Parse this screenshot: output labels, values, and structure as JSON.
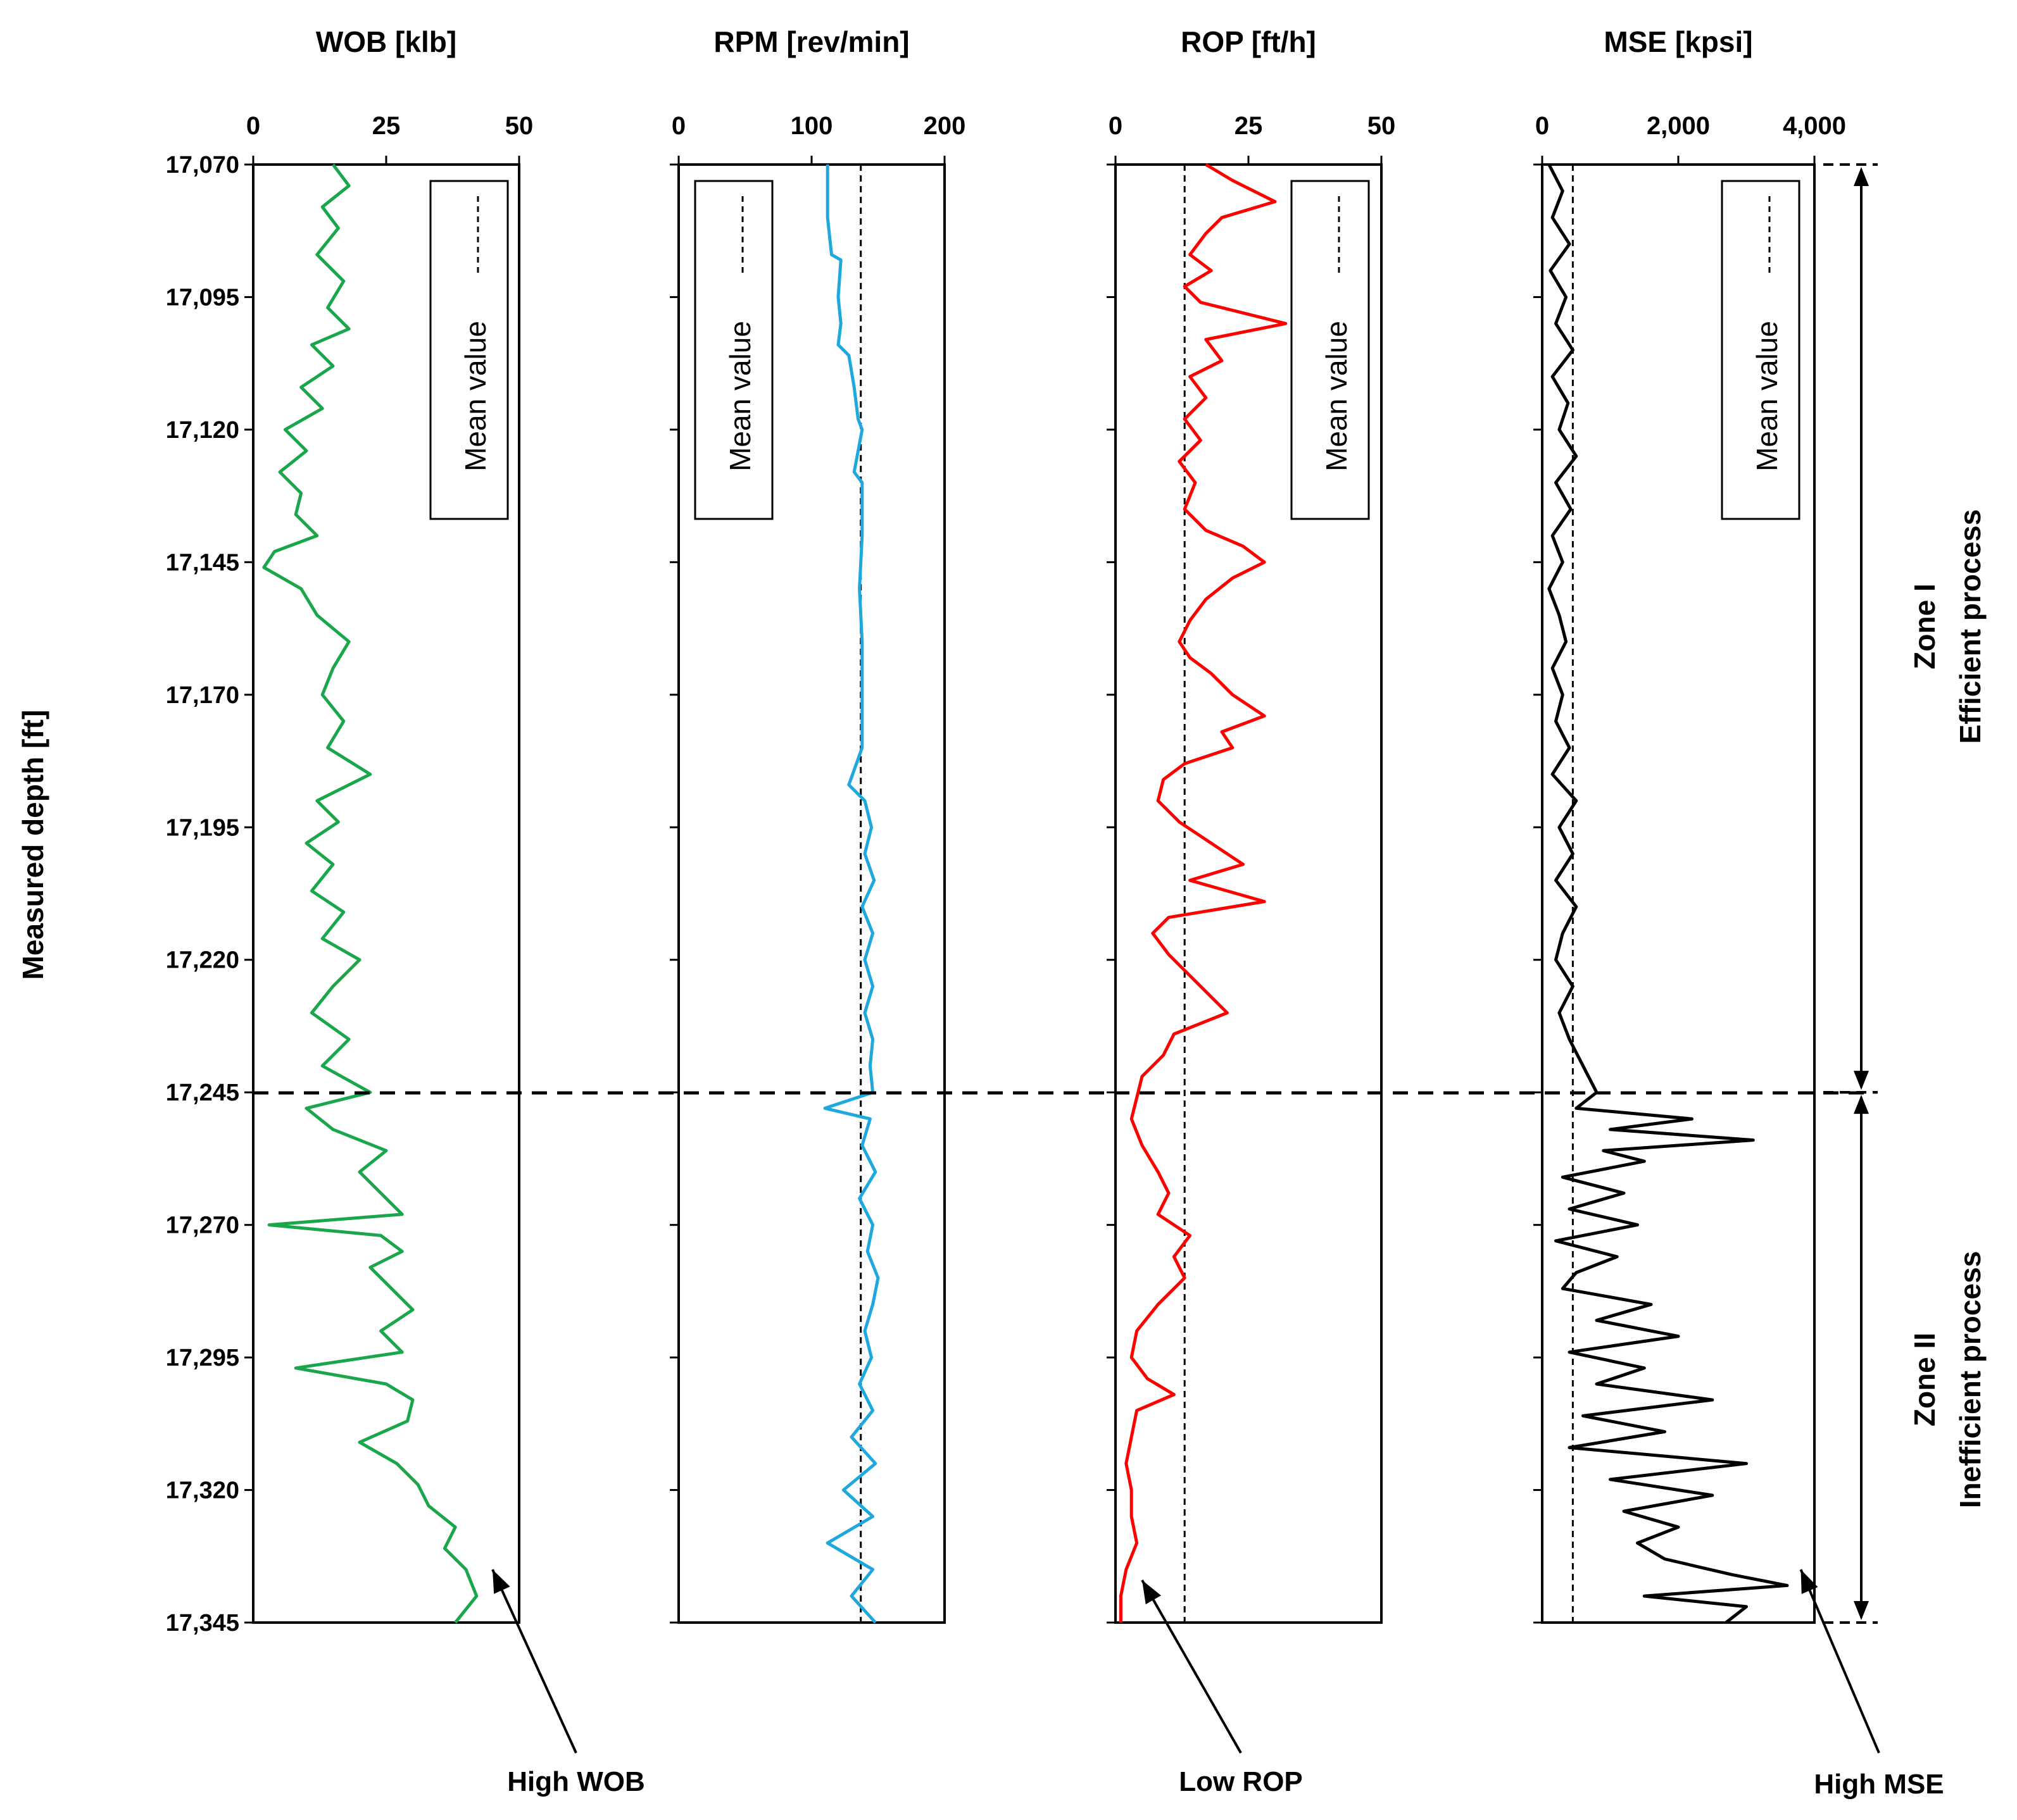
{
  "figure": {
    "y_axis_label": "Measured depth [ft]",
    "legend_label": "Mean value",
    "zones": [
      {
        "name": "Zone I",
        "description": "Efficient process",
        "depth_from": 17070,
        "depth_to": 17245
      },
      {
        "name": "Zone II",
        "description": "Inefficient process",
        "depth_from": 17245,
        "depth_to": 17345
      }
    ],
    "annotations": [
      "High WOB",
      "Low ROP",
      "High MSE"
    ]
  },
  "chart_data": [
    {
      "type": "line",
      "title": "WOB [klb]",
      "xlim": [
        0,
        50
      ],
      "xticks": [
        0,
        25,
        50
      ],
      "xtick_labels": [
        "0",
        "25",
        "50"
      ],
      "ylim": [
        17070,
        17345
      ],
      "yticks": [
        17070,
        17095,
        17120,
        17145,
        17170,
        17195,
        17220,
        17245,
        17270,
        17295,
        17320,
        17345
      ],
      "ytick_labels": [
        "17,070",
        "17,095",
        "17,120",
        "17,145",
        "17,170",
        "17,195",
        "17,220",
        "17,245",
        "17,270",
        "17,295",
        "17,320",
        "17,345"
      ],
      "color": "#1aa64a",
      "mean": null,
      "legend": "top-right",
      "annotation": {
        "text": "High WOB",
        "x": 45,
        "depth": 17335
      },
      "series": [
        {
          "name": "WOB",
          "depth": [
            17070,
            17074,
            17078,
            17082,
            17087,
            17092,
            17097,
            17101,
            17104,
            17108,
            17112,
            17116,
            17120,
            17124,
            17128,
            17132,
            17136,
            17140,
            17143,
            17146,
            17150,
            17155,
            17160,
            17165,
            17170,
            17175,
            17180,
            17185,
            17190,
            17194,
            17198,
            17202,
            17207,
            17211,
            17216,
            17220,
            17225,
            17230,
            17235,
            17240,
            17245,
            17248,
            17252,
            17256,
            17260,
            17264,
            17268,
            17270,
            17272,
            17275,
            17278,
            17282,
            17286,
            17290,
            17294,
            17297,
            17300,
            17303,
            17307,
            17311,
            17315,
            17319,
            17323,
            17327,
            17331,
            17335,
            17340,
            17345
          ],
          "values": [
            15,
            18,
            13,
            16,
            12,
            17,
            14,
            18,
            11,
            15,
            9,
            13,
            6,
            10,
            5,
            9,
            8,
            12,
            4,
            2,
            9,
            12,
            18,
            15,
            13,
            17,
            14,
            22,
            12,
            16,
            10,
            15,
            11,
            17,
            13,
            20,
            15,
            11,
            18,
            13,
            22,
            10,
            15,
            25,
            20,
            24,
            28,
            3,
            24,
            28,
            22,
            26,
            30,
            24,
            28,
            8,
            25,
            30,
            29,
            20,
            27,
            31,
            33,
            38,
            36,
            40,
            42,
            38
          ]
        }
      ]
    },
    {
      "type": "line",
      "title": "RPM [rev/min]",
      "xlim": [
        0,
        200
      ],
      "xticks": [
        0,
        100,
        200
      ],
      "xtick_labels": [
        "0",
        "100",
        "200"
      ],
      "ylim": [
        17070,
        17345
      ],
      "yticks": [
        17070,
        17095,
        17120,
        17145,
        17170,
        17195,
        17220,
        17245,
        17270,
        17295,
        17320,
        17345
      ],
      "color": "#1fa8de",
      "mean": 137,
      "legend": "top-left",
      "series": [
        {
          "name": "RPM",
          "depth": [
            17070,
            17080,
            17087,
            17088,
            17095,
            17100,
            17104,
            17106,
            17112,
            17118,
            17120,
            17128,
            17130,
            17133,
            17140,
            17150,
            17160,
            17180,
            17187,
            17190,
            17195,
            17200,
            17205,
            17210,
            17215,
            17220,
            17225,
            17230,
            17235,
            17240,
            17245,
            17248,
            17250,
            17255,
            17260,
            17265,
            17270,
            17275,
            17280,
            17285,
            17290,
            17295,
            17300,
            17305,
            17310,
            17315,
            17320,
            17325,
            17330,
            17335,
            17340,
            17345
          ],
          "values": [
            112,
            112,
            115,
            122,
            120,
            122,
            120,
            128,
            132,
            135,
            138,
            132,
            138,
            138,
            138,
            136,
            138,
            138,
            128,
            140,
            145,
            140,
            147,
            138,
            146,
            140,
            146,
            140,
            146,
            144,
            146,
            110,
            144,
            138,
            148,
            136,
            146,
            142,
            150,
            146,
            140,
            145,
            136,
            146,
            130,
            148,
            124,
            146,
            112,
            146,
            130,
            148
          ]
        }
      ]
    },
    {
      "type": "line",
      "title": "ROP [ft/h]",
      "xlim": [
        0,
        50
      ],
      "xticks": [
        0,
        25,
        50
      ],
      "xtick_labels": [
        "0",
        "25",
        "50"
      ],
      "ylim": [
        17070,
        17345
      ],
      "yticks": [
        17070,
        17095,
        17120,
        17145,
        17170,
        17195,
        17220,
        17245,
        17270,
        17295,
        17320,
        17345
      ],
      "color": "#ff0000",
      "mean": 13,
      "legend": "top-right",
      "annotation": {
        "text": "Low ROP",
        "x": 5,
        "depth": 17337
      },
      "series": [
        {
          "name": "ROP",
          "depth": [
            17070,
            17073,
            17077,
            17080,
            17083,
            17087,
            17090,
            17093,
            17096,
            17100,
            17103,
            17107,
            17110,
            17114,
            17118,
            17122,
            17126,
            17130,
            17135,
            17139,
            17142,
            17145,
            17148,
            17152,
            17156,
            17160,
            17163,
            17166,
            17170,
            17174,
            17177,
            17180,
            17183,
            17186,
            17190,
            17194,
            17198,
            17202,
            17205,
            17209,
            17212,
            17215,
            17219,
            17222,
            17226,
            17230,
            17234,
            17238,
            17242,
            17246,
            17250,
            17255,
            17260,
            17264,
            17268,
            17272,
            17276,
            17280,
            17285,
            17290,
            17295,
            17299,
            17302,
            17305,
            17310,
            17315,
            17320,
            17325,
            17330,
            17335,
            17340,
            17345
          ],
          "values": [
            17,
            22,
            30,
            20,
            17,
            14,
            18,
            13,
            16,
            32,
            17,
            20,
            14,
            17,
            13,
            16,
            12,
            15,
            13,
            17,
            24,
            28,
            22,
            17,
            14,
            12,
            14,
            18,
            22,
            28,
            20,
            22,
            13,
            9,
            8,
            12,
            18,
            24,
            14,
            28,
            10,
            7,
            10,
            13,
            17,
            21,
            11,
            9,
            5,
            4,
            3,
            5,
            8,
            10,
            8,
            14,
            11,
            13,
            8,
            4,
            3,
            6,
            11,
            4,
            3,
            2,
            3,
            3,
            4,
            2,
            1,
            1
          ]
        }
      ]
    },
    {
      "type": "line",
      "title": "MSE [kpsi]",
      "xlim": [
        0,
        4000
      ],
      "xticks": [
        0,
        2000,
        4000
      ],
      "xtick_labels": [
        "0",
        "2,000",
        "4,000"
      ],
      "ylim": [
        17070,
        17345
      ],
      "yticks": [
        17070,
        17095,
        17120,
        17145,
        17170,
        17195,
        17220,
        17245,
        17270,
        17295,
        17320,
        17345
      ],
      "color": "#000000",
      "mean": 450,
      "legend": "top-right",
      "annotation": {
        "text": "High MSE",
        "x": 3800,
        "depth": 17335
      },
      "series": [
        {
          "name": "MSE",
          "depth": [
            17070,
            17075,
            17080,
            17085,
            17090,
            17095,
            17100,
            17105,
            17110,
            17115,
            17120,
            17125,
            17130,
            17135,
            17140,
            17145,
            17150,
            17155,
            17160,
            17165,
            17170,
            17175,
            17180,
            17185,
            17190,
            17195,
            17200,
            17205,
            17210,
            17215,
            17220,
            17225,
            17230,
            17235,
            17240,
            17245,
            17248,
            17250,
            17252,
            17254,
            17256,
            17258,
            17261,
            17264,
            17267,
            17270,
            17273,
            17276,
            17279,
            17282,
            17285,
            17288,
            17291,
            17294,
            17297,
            17300,
            17303,
            17306,
            17309,
            17312,
            17315,
            17318,
            17321,
            17324,
            17327,
            17330,
            17333,
            17336,
            17338,
            17340,
            17342,
            17345
          ],
          "values": [
            100,
            300,
            150,
            400,
            120,
            350,
            200,
            450,
            150,
            380,
            250,
            500,
            200,
            420,
            150,
            300,
            100,
            250,
            350,
            150,
            300,
            200,
            400,
            150,
            500,
            250,
            450,
            200,
            500,
            300,
            200,
            450,
            250,
            400,
            600,
            800,
            500,
            2200,
            1000,
            3100,
            900,
            1500,
            300,
            1200,
            400,
            1400,
            200,
            1100,
            500,
            300,
            1600,
            800,
            2000,
            400,
            1500,
            800,
            2500,
            600,
            1800,
            400,
            3000,
            1000,
            2500,
            1200,
            2000,
            1400,
            1800,
            2800,
            3600,
            1500,
            3000,
            2700
          ]
        }
      ]
    }
  ]
}
